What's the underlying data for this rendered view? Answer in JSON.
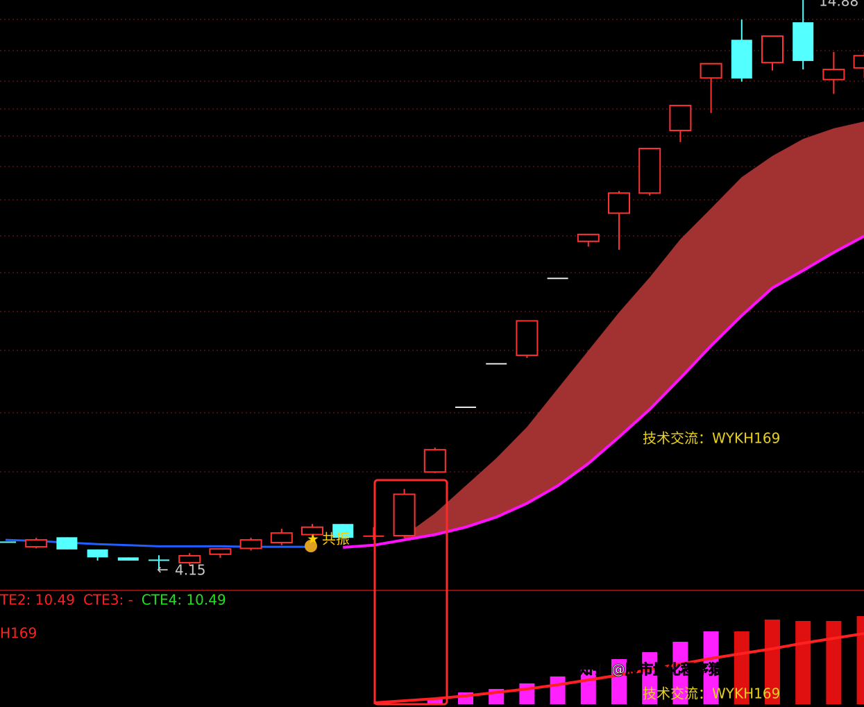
{
  "chart_data": [
    {
      "type": "candlestick",
      "open": [
        4.67,
        4.57,
        4.75,
        4.52,
        4.37,
        4.33,
        4.27,
        4.43,
        4.54,
        4.65,
        4.8,
        5.0,
        4.77,
        4.78,
        5.98,
        7.2,
        8.02,
        8.18,
        9.63,
        10.33,
        10.86,
        11.24,
        12.42,
        13.41,
        14.13,
        13.7,
        14.46,
        13.38,
        13.6
      ],
      "high": [
        4.67,
        4.74,
        4.75,
        4.52,
        4.37,
        4.41,
        4.45,
        4.53,
        4.74,
        4.91,
        5.0,
        5.0,
        4.94,
        5.66,
        6.44,
        7.2,
        8.02,
        8.83,
        9.63,
        10.46,
        11.28,
        12.08,
        12.89,
        13.68,
        14.51,
        14.2,
        14.88,
        13.9,
        13.9
      ],
      "low": [
        4.65,
        4.54,
        4.52,
        4.31,
        4.31,
        4.15,
        4.22,
        4.36,
        4.5,
        4.6,
        4.74,
        4.74,
        4.7,
        4.74,
        5.96,
        7.2,
        8.02,
        8.13,
        9.63,
        10.23,
        10.17,
        11.19,
        12.2,
        12.75,
        13.34,
        13.55,
        13.57,
        13.11,
        13.41
      ],
      "close": [
        4.65,
        4.7,
        4.52,
        4.37,
        4.31,
        4.31,
        4.4,
        4.53,
        4.7,
        4.83,
        4.94,
        4.74,
        4.77,
        5.56,
        6.4,
        7.2,
        8.02,
        8.83,
        9.63,
        10.46,
        11.24,
        12.08,
        12.89,
        13.68,
        13.4,
        14.2,
        13.73,
        13.57,
        13.83
      ],
      "up_color": "#ff3232",
      "down_color": "#54ffff",
      "flat_color": "#e8e8e8",
      "series": [
        {
          "color": "#a23232",
          "fill": true,
          "values": [
            null,
            null,
            null,
            null,
            null,
            null,
            null,
            null,
            null,
            null,
            null,
            null,
            null,
            4.78,
            5.2,
            5.72,
            6.24,
            6.83,
            7.55,
            8.27,
            8.99,
            9.65,
            10.37,
            10.95,
            11.54,
            11.94,
            12.26,
            12.46,
            12.59
          ]
        },
        {
          "color": "#ff10ff",
          "values": [
            null,
            null,
            null,
            null,
            null,
            null,
            null,
            null,
            null,
            null,
            null,
            4.56,
            4.6,
            4.7,
            4.8,
            4.94,
            5.13,
            5.39,
            5.72,
            6.14,
            6.64,
            7.16,
            7.75,
            8.36,
            8.93,
            9.45,
            9.78,
            10.12,
            10.43
          ]
        },
        {
          "color": "#2060ff",
          "values": [
            4.7,
            4.68,
            4.65,
            4.62,
            4.6,
            4.58,
            4.58,
            4.58,
            4.57,
            4.57,
            4.57,
            null,
            null,
            null,
            null,
            null,
            null,
            null,
            null,
            null,
            null,
            null,
            null,
            null,
            null,
            null,
            null,
            null,
            null
          ]
        }
      ],
      "ylim": [
        3.76,
        14.88
      ],
      "high_label": "14.88",
      "low_label": "4.15",
      "signal_label": "共振",
      "annotation": "技术交流：WYKH169"
    },
    {
      "type": "bar",
      "series": [
        {
          "color": "#ff20ff",
          "values": [
            null,
            null,
            null,
            null,
            null,
            null,
            null,
            null,
            null,
            null,
            null,
            null,
            null,
            null,
            9,
            17,
            22,
            30,
            40,
            50,
            65,
            75,
            90,
            105,
            null,
            null,
            null,
            null,
            null
          ]
        },
        {
          "color": "#e01010",
          "values": [
            null,
            null,
            null,
            null,
            null,
            null,
            null,
            null,
            null,
            null,
            null,
            null,
            null,
            null,
            null,
            null,
            null,
            null,
            null,
            null,
            null,
            null,
            null,
            null,
            105,
            122,
            120,
            120,
            127
          ]
        },
        {
          "color": "#ff2020",
          "line": true,
          "values": [
            null,
            null,
            null,
            null,
            null,
            null,
            null,
            null,
            null,
            null,
            null,
            null,
            2,
            5,
            8,
            12,
            17,
            22,
            28,
            35,
            42,
            50,
            58,
            66,
            73,
            80,
            88,
            95,
            102
          ]
        }
      ],
      "ylim": [
        0,
        130
      ],
      "legend_items": [
        {
          "text": "TE2: 10.49",
          "color": "#ff2020"
        },
        {
          "text": "CTE3: -",
          "color": "#ff2020"
        },
        {
          "text": "CTE4: 10.49",
          "color": "#20e020"
        }
      ],
      "sub_label": "H169",
      "annotation": "技术交流：WYKH169"
    }
  ],
  "watermark": "知乎 @股市量化程序猿"
}
